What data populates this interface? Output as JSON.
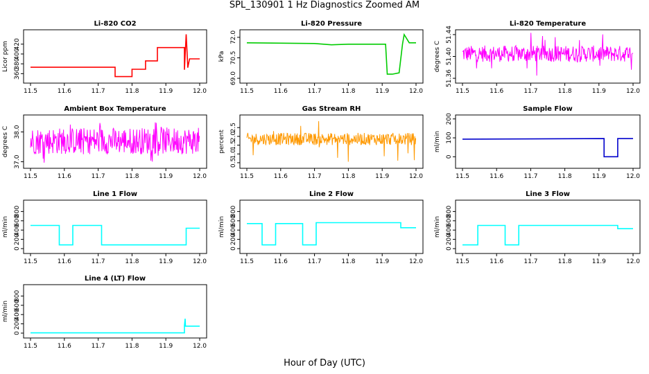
{
  "figure": {
    "title": "SPL_130901  1 Hz Diagnostics Zoomed AM",
    "xlabel": "Hour of Day (UTC)"
  },
  "chart_data": [
    {
      "type": "line",
      "title": "Li-820 CO2",
      "ylabel": "Licor ppm",
      "color": "#ff0000",
      "xlim": [
        11.5,
        12.0
      ],
      "ylim": [
        345,
        445
      ],
      "xticks": [
        "11.5",
        "11.6",
        "11.7",
        "11.8",
        "11.9",
        "12.0"
      ],
      "xtick_values": [
        11.5,
        11.6,
        11.7,
        11.8,
        11.9,
        12.0
      ],
      "yticks": [
        "360",
        "380",
        "400",
        "420"
      ],
      "ytick_values": [
        360,
        380,
        400,
        420
      ],
      "x": [
        11.5,
        11.75,
        11.75,
        11.8,
        11.8,
        11.84,
        11.84,
        11.875,
        11.875,
        11.955,
        11.955,
        11.96,
        11.965,
        11.965,
        11.97,
        12.0
      ],
      "y": [
        373,
        373,
        354,
        354,
        369,
        369,
        386,
        386,
        413,
        413,
        368,
        440,
        372,
        373,
        390,
        390
      ]
    },
    {
      "type": "line",
      "title": "Li-820 Pressure",
      "ylabel": "kPa",
      "color": "#00cc00",
      "xlim": [
        11.5,
        12.0
      ],
      "ylim": [
        68.8,
        72.4
      ],
      "xticks": [
        "11.5",
        "11.6",
        "11.7",
        "11.8",
        "11.9",
        "12.0"
      ],
      "xtick_values": [
        11.5,
        11.6,
        11.7,
        11.8,
        11.9,
        12.0
      ],
      "yticks": [
        "69.0",
        "70.5",
        "72.0"
      ],
      "ytick_values": [
        69.0,
        70.5,
        72.0
      ],
      "x": [
        11.5,
        11.7,
        11.75,
        11.8,
        11.9,
        11.91,
        11.915,
        11.93,
        11.95,
        11.96,
        11.965,
        11.97,
        11.98,
        12.0
      ],
      "y": [
        71.6,
        71.55,
        71.45,
        71.5,
        71.5,
        71.5,
        69.3,
        69.3,
        69.4,
        71.5,
        72.2,
        72.0,
        71.6,
        71.6
      ]
    },
    {
      "type": "line",
      "title": "Li-820 Temperature",
      "ylabel": "degrees C",
      "color": "#ff00ff",
      "xlim": [
        11.5,
        12.0
      ],
      "ylim": [
        51.355,
        51.445
      ],
      "xticks": [
        "11.5",
        "11.6",
        "11.7",
        "11.8",
        "11.9",
        "12.0"
      ],
      "xtick_values": [
        11.5,
        11.6,
        11.7,
        11.8,
        11.9,
        12.0
      ],
      "yticks": [
        "51.36",
        "51.40",
        "51.44"
      ],
      "ytick_values": [
        51.36,
        51.4,
        51.44
      ],
      "noise": {
        "center": 51.405,
        "halfwidth": 0.015,
        "min": 51.356,
        "max": 51.444
      }
    },
    {
      "type": "line",
      "title": "Ambient Box Temperature",
      "ylabel": "degrees C",
      "color": "#ff00ff",
      "xlim": [
        11.5,
        12.0
      ],
      "ylim": [
        36.85,
        38.5
      ],
      "xticks": [
        "11.5",
        "11.6",
        "11.7",
        "11.8",
        "11.9",
        "12.0"
      ],
      "xtick_values": [
        11.5,
        11.6,
        11.7,
        11.8,
        11.9,
        12.0
      ],
      "yticks": [
        "37.0",
        "38.0"
      ],
      "ytick_values": [
        37.0,
        38.0
      ],
      "noise": {
        "center": 37.7,
        "halfwidth": 0.45,
        "min": 36.95,
        "max": 38.4
      }
    },
    {
      "type": "line",
      "title": "Gas Stream RH",
      "ylabel": "percent",
      "color": "#ff9900",
      "xlim": [
        11.5,
        12.0
      ],
      "ylim": [
        0.3,
        3.1
      ],
      "xticks": [
        "11.5",
        "11.6",
        "11.7",
        "11.8",
        "11.9",
        "12.0"
      ],
      "xtick_values": [
        11.5,
        11.6,
        11.7,
        11.8,
        11.9,
        12.0
      ],
      "yticks": [
        "0.5",
        "1.0",
        "1.5",
        "2.0",
        "2.5"
      ],
      "ytick_values": [
        0.5,
        1.0,
        1.5,
        2.0,
        2.5
      ],
      "noise": {
        "center": 1.85,
        "halfwidth": 0.35,
        "min": 0.5,
        "max": 2.9
      }
    },
    {
      "type": "line",
      "title": "Sample Flow",
      "ylabel": "ml/min",
      "color": "#0000cc",
      "xlim": [
        11.5,
        12.0
      ],
      "ylim": [
        -50,
        210
      ],
      "xticks": [
        "11.5",
        "11.6",
        "11.7",
        "11.8",
        "11.9",
        "12.0"
      ],
      "xtick_values": [
        11.5,
        11.6,
        11.7,
        11.8,
        11.9,
        12.0
      ],
      "yticks": [
        "0",
        "100",
        "200"
      ],
      "ytick_values": [
        0,
        100,
        200
      ],
      "x": [
        11.5,
        11.915,
        11.915,
        11.955,
        11.955,
        12.0
      ],
      "y": [
        93,
        96,
        0,
        0,
        96,
        96
      ]
    },
    {
      "type": "line",
      "title": "Line 1 Flow",
      "ylabel": "ml/min",
      "color": "#00ffff",
      "xlim": [
        11.5,
        12.0
      ],
      "ylim": [
        -60,
        1000
      ],
      "xticks": [
        "11.5",
        "11.6",
        "11.7",
        "11.8",
        "11.9",
        "12.0"
      ],
      "xtick_values": [
        11.5,
        11.6,
        11.7,
        11.8,
        11.9,
        12.0
      ],
      "yticks": [
        "0",
        "200",
        "400",
        "600",
        "800"
      ],
      "ytick_values": [
        0,
        200,
        400,
        600,
        800
      ],
      "x": [
        11.5,
        11.585,
        11.585,
        11.625,
        11.625,
        11.71,
        11.71,
        11.96,
        11.96,
        12.0
      ],
      "y": [
        500,
        500,
        80,
        80,
        500,
        500,
        80,
        80,
        440,
        440
      ]
    },
    {
      "type": "line",
      "title": "Line 2 Flow",
      "ylabel": "ml/min",
      "color": "#00ffff",
      "xlim": [
        11.5,
        12.0
      ],
      "ylim": [
        -60,
        1000
      ],
      "xticks": [
        "11.5",
        "11.6",
        "11.7",
        "11.8",
        "11.9",
        "12.0"
      ],
      "xtick_values": [
        11.5,
        11.6,
        11.7,
        11.8,
        11.9,
        12.0
      ],
      "yticks": [
        "0",
        "200",
        "400",
        "600",
        "800"
      ],
      "ytick_values": [
        0,
        200,
        400,
        600,
        800
      ],
      "x": [
        11.5,
        11.545,
        11.545,
        11.585,
        11.585,
        11.665,
        11.665,
        11.705,
        11.705,
        11.955,
        11.955,
        12.0
      ],
      "y": [
        540,
        540,
        80,
        80,
        540,
        540,
        80,
        80,
        560,
        560,
        450,
        450
      ]
    },
    {
      "type": "line",
      "title": "Line 3 Flow",
      "ylabel": "ml/min",
      "color": "#00ffff",
      "xlim": [
        11.5,
        12.0
      ],
      "ylim": [
        -60,
        1000
      ],
      "xticks": [
        "11.5",
        "11.6",
        "11.7",
        "11.8",
        "11.9",
        "12.0"
      ],
      "xtick_values": [
        11.5,
        11.6,
        11.7,
        11.8,
        11.9,
        12.0
      ],
      "yticks": [
        "0",
        "200",
        "400",
        "600",
        "800"
      ],
      "ytick_values": [
        0,
        200,
        400,
        600,
        800
      ],
      "x": [
        11.5,
        11.545,
        11.545,
        11.625,
        11.625,
        11.665,
        11.665,
        11.955,
        11.955,
        12.0
      ],
      "y": [
        80,
        80,
        500,
        500,
        80,
        80,
        500,
        500,
        430,
        430
      ]
    },
    {
      "type": "line",
      "title": "Line 4 (LT) Flow",
      "ylabel": "ml/min",
      "color": "#00ffff",
      "xlim": [
        11.5,
        12.0
      ],
      "ylim": [
        -60,
        1000
      ],
      "xticks": [
        "11.5",
        "11.6",
        "11.7",
        "11.8",
        "11.9",
        "12.0"
      ],
      "xtick_values": [
        11.5,
        11.6,
        11.7,
        11.8,
        11.9,
        12.0
      ],
      "yticks": [
        "0",
        "200",
        "400",
        "600",
        "800"
      ],
      "ytick_values": [
        0,
        200,
        400,
        600,
        800
      ],
      "x": [
        11.5,
        11.955,
        11.955,
        11.957,
        11.958,
        12.0
      ],
      "y": [
        5,
        5,
        160,
        310,
        150,
        150
      ]
    }
  ]
}
